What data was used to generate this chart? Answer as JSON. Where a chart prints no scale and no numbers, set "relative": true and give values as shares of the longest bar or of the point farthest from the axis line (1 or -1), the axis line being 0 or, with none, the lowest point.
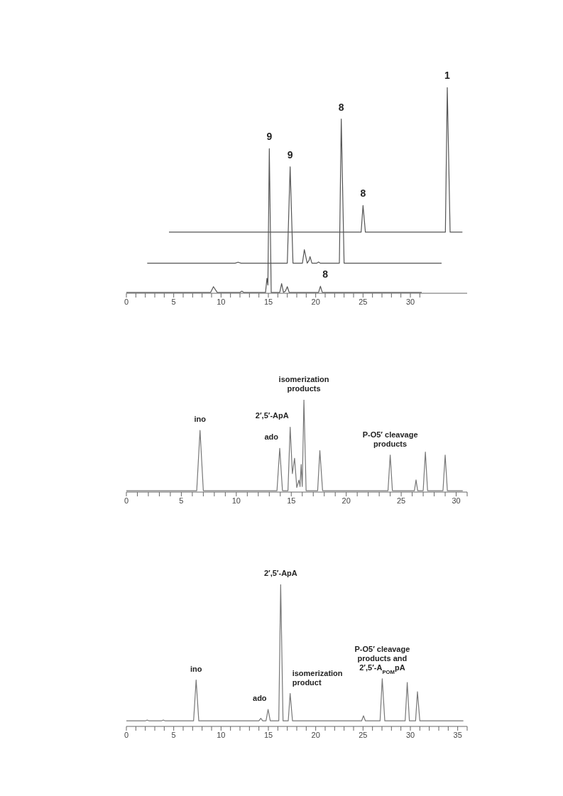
{
  "chart_data": [
    {
      "type": "line",
      "relative": true,
      "marker": "none",
      "line_style": "solid",
      "xlim": [
        0,
        36
      ],
      "xticks": [
        0,
        {
          "value": 1,
          "label": null
        },
        {
          "value": 2,
          "label": null
        },
        {
          "value": 3,
          "label": null
        },
        {
          "value": 4,
          "label": null
        },
        5,
        {
          "value": 6,
          "label": null
        },
        {
          "value": 7,
          "label": null
        },
        {
          "value": 8,
          "label": null
        },
        {
          "value": 9,
          "label": null
        },
        10,
        {
          "value": 11,
          "label": null
        },
        {
          "value": 12,
          "label": null
        },
        {
          "value": 13,
          "label": null
        },
        {
          "value": 14,
          "label": null
        },
        15,
        {
          "value": 16,
          "label": null
        },
        {
          "value": 17,
          "label": null
        },
        {
          "value": 18,
          "label": null
        },
        {
          "value": 19,
          "label": null
        },
        20,
        {
          "value": 21,
          "label": null
        },
        {
          "value": 22,
          "label": null
        },
        {
          "value": 23,
          "label": null
        },
        {
          "value": 24,
          "label": null
        },
        25,
        {
          "value": 26,
          "label": null
        },
        {
          "value": 27,
          "label": null
        },
        {
          "value": 28,
          "label": null
        },
        {
          "value": 29,
          "label": null
        },
        30,
        {
          "value": 31,
          "label": null
        }
      ],
      "series": [
        {
          "color": "#555555",
          "x": [
            4.5,
            24.8,
            25.0,
            25.25,
            33.7,
            33.9,
            34.2,
            35.5
          ],
          "values": [
            0.297,
            0.297,
            0.426,
            0.297,
            0.297,
            1.0,
            0.297,
            0.297
          ]
        },
        {
          "color": "#555555",
          "x": [
            2.2,
            11.5,
            11.8,
            12.1,
            17.0,
            17.3,
            17.6,
            18.6,
            18.8,
            19.1,
            19.3,
            19.4,
            19.6,
            20.1,
            20.3,
            20.5,
            22.5,
            22.7,
            23.0,
            33.3
          ],
          "values": [
            0.146,
            0.146,
            0.151,
            0.146,
            0.146,
            0.614,
            0.146,
            0.146,
            0.212,
            0.146,
            0.16,
            0.178,
            0.146,
            0.146,
            0.152,
            0.146,
            0.146,
            0.846,
            0.146,
            0.146
          ]
        },
        {
          "color": "#555555",
          "x": [
            0,
            8.9,
            9.2,
            9.6,
            12.0,
            12.2,
            12.4,
            14.7,
            14.85,
            14.95,
            15.1,
            15.3,
            16.2,
            16.4,
            16.6,
            16.8,
            17.0,
            17.2,
            20.3,
            20.5,
            20.7,
            31.2
          ],
          "values": [
            0.004,
            0.004,
            0.032,
            0.004,
            0.004,
            0.01,
            0.004,
            0.004,
            0.073,
            0.04,
            0.702,
            0.004,
            0.004,
            0.047,
            0.004,
            0.01,
            0.032,
            0.004,
            0.004,
            0.034,
            0.004,
            0.004
          ]
        }
      ],
      "annotations": [
        {
          "text": "1",
          "x": 33.9,
          "y": 1.0
        },
        {
          "text": "8",
          "x": 25.0,
          "y": 0.426
        },
        {
          "text": "9",
          "x": 17.3,
          "y": 0.614
        },
        {
          "text": "8",
          "x": 22.7,
          "y": 0.846
        },
        {
          "text": "9",
          "x": 15.1,
          "y": 0.702
        },
        {
          "text": "8",
          "x": 20.5,
          "y": 0.034
        }
      ]
    },
    {
      "type": "line",
      "relative": true,
      "marker": "none",
      "line_style": "solid",
      "xlim": [
        0,
        31
      ],
      "xticks": [
        0,
        {
          "value": 1,
          "label": null
        },
        {
          "value": 2,
          "label": null
        },
        {
          "value": 3,
          "label": null
        },
        {
          "value": 4,
          "label": null
        },
        5,
        {
          "value": 6,
          "label": null
        },
        {
          "value": 7,
          "label": null
        },
        {
          "value": 8,
          "label": null
        },
        {
          "value": 9,
          "label": null
        },
        10,
        {
          "value": 11,
          "label": null
        },
        {
          "value": 12,
          "label": null
        },
        {
          "value": 13,
          "label": null
        },
        {
          "value": 14,
          "label": null
        },
        15,
        {
          "value": 16,
          "label": null
        },
        {
          "value": 17,
          "label": null
        },
        {
          "value": 18,
          "label": null
        },
        {
          "value": 19,
          "label": null
        },
        20,
        {
          "value": 21,
          "label": null
        },
        {
          "value": 22,
          "label": null
        },
        {
          "value": 23,
          "label": null
        },
        {
          "value": 24,
          "label": null
        },
        25,
        {
          "value": 26,
          "label": null
        },
        {
          "value": 27,
          "label": null
        },
        {
          "value": 28,
          "label": null
        },
        {
          "value": 29,
          "label": null
        },
        30,
        {
          "value": 31,
          "label": null
        }
      ],
      "series": [
        {
          "color": "#777777",
          "x": [
            0,
            6.4,
            6.7,
            7.0,
            13.7,
            13.95,
            14.2,
            14.7,
            14.9,
            15.1,
            15.3,
            15.5,
            15.7,
            15.8,
            15.9,
            16.0,
            16.15,
            16.35,
            17.4,
            17.6,
            17.85,
            23.8,
            24.0,
            24.2,
            26.2,
            26.35,
            26.5,
            27.0,
            27.2,
            27.4,
            28.8,
            29.0,
            29.2,
            30.6
          ],
          "values": [
            0.015,
            0.015,
            0.669,
            0.015,
            0.015,
            0.475,
            0.015,
            0.015,
            0.704,
            0.2,
            0.367,
            0.05,
            0.13,
            0.06,
            0.299,
            0.06,
            1.0,
            0.015,
            0.015,
            0.449,
            0.015,
            0.015,
            0.402,
            0.015,
            0.015,
            0.132,
            0.015,
            0.015,
            0.434,
            0.015,
            0.015,
            0.402,
            0.015,
            0.015
          ]
        }
      ],
      "annotations": [
        {
          "text": "ino",
          "x": 6.7,
          "y": 0.669
        },
        {
          "text": "ado",
          "x": 13.95,
          "y": 0.475
        },
        {
          "text": "2′,5′-ApA",
          "x": 14.9,
          "y": 0.704
        },
        {
          "text": "isomerization\nproducts",
          "x": 16.15,
          "y": 1.0
        },
        {
          "text": "P-O5′ cleavage\nproducts",
          "x": 24.0,
          "y": 0.402
        }
      ]
    },
    {
      "type": "line",
      "relative": true,
      "marker": "none",
      "line_style": "solid",
      "xlim": [
        0,
        36
      ],
      "xticks": [
        0,
        {
          "value": 1,
          "label": null
        },
        {
          "value": 2,
          "label": null
        },
        {
          "value": 3,
          "label": null
        },
        {
          "value": 4,
          "label": null
        },
        5,
        {
          "value": 6,
          "label": null
        },
        {
          "value": 7,
          "label": null
        },
        {
          "value": 8,
          "label": null
        },
        {
          "value": 9,
          "label": null
        },
        10,
        {
          "value": 11,
          "label": null
        },
        {
          "value": 12,
          "label": null
        },
        {
          "value": 13,
          "label": null
        },
        {
          "value": 14,
          "label": null
        },
        15,
        {
          "value": 16,
          "label": null
        },
        {
          "value": 17,
          "label": null
        },
        {
          "value": 18,
          "label": null
        },
        {
          "value": 19,
          "label": null
        },
        20,
        {
          "value": 21,
          "label": null
        },
        {
          "value": 22,
          "label": null
        },
        {
          "value": 23,
          "label": null
        },
        {
          "value": 24,
          "label": null
        },
        25,
        {
          "value": 26,
          "label": null
        },
        {
          "value": 27,
          "label": null
        },
        {
          "value": 28,
          "label": null
        },
        {
          "value": 29,
          "label": null
        },
        30,
        {
          "value": 31,
          "label": null
        },
        {
          "value": 32,
          "label": null
        },
        {
          "value": 33,
          "label": null
        },
        {
          "value": 34,
          "label": null
        },
        35,
        {
          "value": 36,
          "label": null
        }
      ],
      "series": [
        {
          "color": "#777777",
          "x": [
            0,
            2.0,
            2.2,
            2.4,
            3.7,
            3.9,
            4.1,
            7.1,
            7.37,
            7.65,
            14.0,
            14.2,
            14.4,
            14.75,
            14.97,
            15.2,
            16.1,
            16.3,
            16.55,
            17.1,
            17.3,
            17.55,
            24.85,
            25.05,
            25.25,
            26.8,
            27.03,
            27.3,
            29.45,
            29.67,
            29.9,
            30.55,
            30.75,
            31.0,
            35.6
          ],
          "values": [
            0.039,
            0.039,
            0.045,
            0.039,
            0.039,
            0.045,
            0.039,
            0.039,
            0.327,
            0.039,
            0.039,
            0.057,
            0.039,
            0.039,
            0.12,
            0.039,
            0.039,
            1.0,
            0.039,
            0.039,
            0.232,
            0.039,
            0.039,
            0.075,
            0.039,
            0.039,
            0.336,
            0.039,
            0.039,
            0.309,
            0.039,
            0.039,
            0.244,
            0.039,
            0.039
          ]
        }
      ],
      "annotations": [
        {
          "text": "2′,5′-ApA",
          "x": 16.3,
          "y": 1.0
        },
        {
          "text": "ino",
          "x": 7.37,
          "y": 0.327
        },
        {
          "text": "ado",
          "x": 14.97,
          "y": 0.12
        },
        {
          "text": "isomerization\nproduct",
          "x": 17.3,
          "y": 0.232
        },
        {
          "text": "P-O5′ cleavage\nproducts and\n2′,5′-A$_{POM}$pA",
          "x": 27.03,
          "y": 0.336
        }
      ]
    }
  ]
}
